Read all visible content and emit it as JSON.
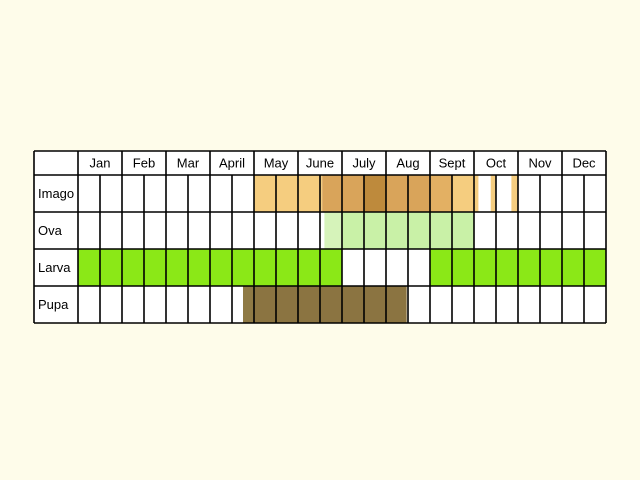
{
  "months": [
    "Jan",
    "Feb",
    "Mar",
    "Apr",
    "May",
    "June",
    "July",
    "Aug",
    "Sept",
    "Oct",
    "Nov",
    "Dec"
  ],
  "month_labels": [
    "Jan",
    "Feb",
    "Mar",
    "April",
    "May",
    "June",
    "July",
    "Aug",
    "Sept",
    "Oct",
    "Nov",
    "Dec"
  ],
  "stages": [
    {
      "key": "imago",
      "label": "Imago",
      "periods": [
        {
          "from": 5.0,
          "to": 6.55,
          "color": "#f5cd7f"
        },
        {
          "from": 6.55,
          "to": 7.5,
          "color": "#d9a45a"
        },
        {
          "from": 7.5,
          "to": 8.0,
          "color": "#be8a3c"
        },
        {
          "from": 8.0,
          "to": 9.0,
          "color": "#d9a45a"
        },
        {
          "from": 9.0,
          "to": 9.5,
          "color": "#e3b063"
        },
        {
          "from": 9.5,
          "to": 10.1,
          "color": "#f5cd7f"
        },
        {
          "from": 10.38,
          "to": 10.5,
          "color": "#f5cd7f"
        },
        {
          "from": 10.85,
          "to": 11.0,
          "color": "#f5cd7f"
        }
      ]
    },
    {
      "key": "ova",
      "label": "Ova",
      "periods": [
        {
          "from": 6.6,
          "to": 7.0,
          "color": "#d6f3ba"
        },
        {
          "from": 7.0,
          "to": 10.0,
          "color": "#c9f1a7"
        }
      ]
    },
    {
      "key": "larva",
      "label": "Larva",
      "periods": [
        {
          "from": 1.0,
          "to": 7.0,
          "color": "#8be817"
        },
        {
          "from": 9.0,
          "to": 13.0,
          "color": "#8be817"
        }
      ]
    },
    {
      "key": "pupa",
      "label": "Pupa",
      "periods": [
        {
          "from": 4.75,
          "to": 5.0,
          "color": "#8f7a45"
        },
        {
          "from": 5.0,
          "to": 8.0,
          "color": "#8b7441"
        },
        {
          "from": 8.0,
          "to": 8.47,
          "color": "#8b7441"
        }
      ]
    }
  ],
  "colors": {
    "background": "#fefcea",
    "cell": "#ffffff",
    "grid": "#000000",
    "text": "#000000"
  }
}
